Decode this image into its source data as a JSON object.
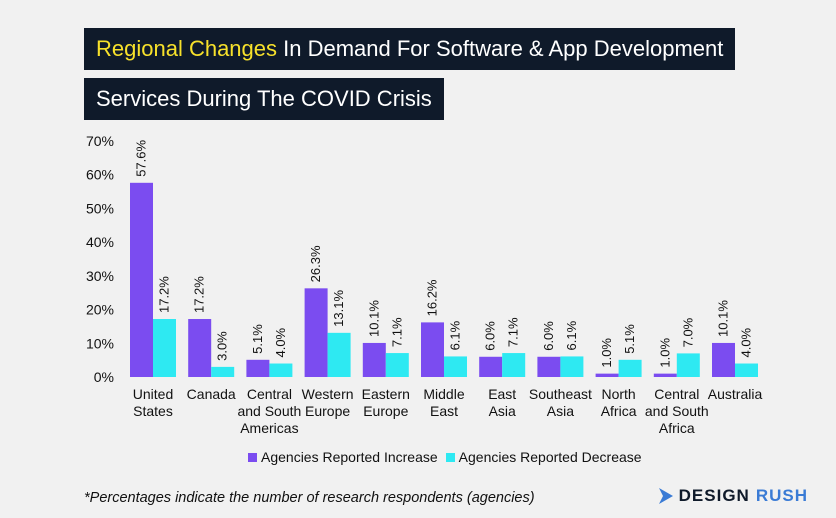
{
  "title": {
    "line1_accent": "Regional Changes",
    "line1_rest": " In Demand For Software & App Development",
    "line2": "Services During The COVID Crisis"
  },
  "colors": {
    "increase": "#7b4cf0",
    "decrease": "#2ee9f2",
    "title_bg": "#0f1a2a",
    "accent": "#f7e12b"
  },
  "chart_data": {
    "type": "bar",
    "categories": [
      [
        "United",
        "States"
      ],
      [
        "Canada"
      ],
      [
        "Central",
        "and South",
        "Americas"
      ],
      [
        "Western",
        "Europe"
      ],
      [
        "Eastern",
        "Europe"
      ],
      [
        "Middle",
        "East"
      ],
      [
        "East",
        "Asia"
      ],
      [
        "Southeast",
        "Asia"
      ],
      [
        "North",
        "Africa"
      ],
      [
        "Central",
        "and South",
        "Africa"
      ],
      [
        "Australia"
      ]
    ],
    "series": [
      {
        "name": "Agencies Reported Increase",
        "values": [
          57.6,
          17.2,
          5.1,
          26.3,
          10.1,
          16.2,
          6.0,
          6.0,
          1.0,
          1.0,
          10.1
        ],
        "labels": [
          "57.6%",
          "17.2%",
          "5.1%",
          "26.3%",
          "10.1%",
          "16.2%",
          "6.0%",
          "6.0%",
          "1.0%",
          "1.0%",
          "10.1%"
        ]
      },
      {
        "name": "Agencies Reported Decrease",
        "values": [
          17.2,
          3.0,
          4.0,
          13.1,
          7.1,
          6.1,
          7.1,
          6.1,
          5.1,
          7.0,
          4.0
        ],
        "labels": [
          "17.2%",
          "3.0%",
          "4.0%",
          "13.1%",
          "7.1%",
          "6.1%",
          "7.1%",
          "6.1%",
          "5.1%",
          "7.0%",
          "4.0%"
        ]
      }
    ],
    "yticks": [
      "0%",
      "10%",
      "20%",
      "30%",
      "40%",
      "50%",
      "60%",
      "70%"
    ],
    "ylim": [
      0,
      70
    ],
    "grid": false,
    "legend": "bottom"
  },
  "footnote": "*Percentages indicate the number of research respondents (agencies)",
  "brand": {
    "part1": "DESIGN",
    "part2": "RUSH",
    "icon": "chevron-logo-icon"
  }
}
